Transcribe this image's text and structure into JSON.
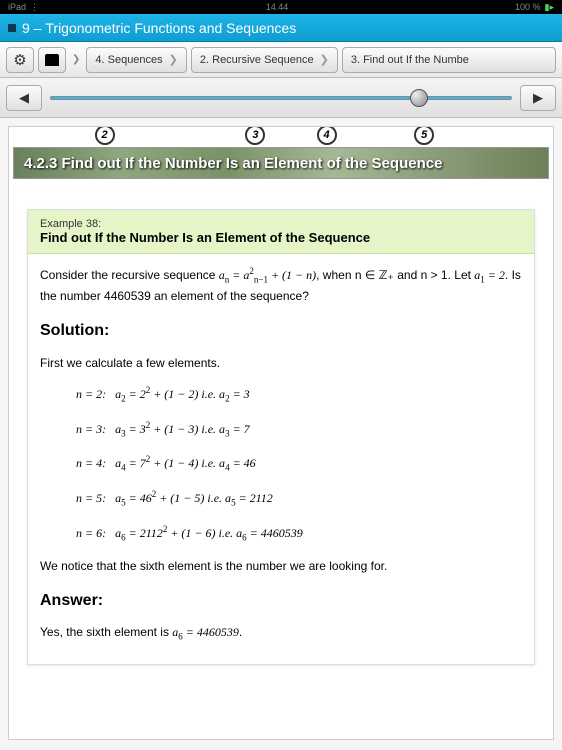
{
  "status": {
    "carrier": "iPad",
    "time": "14.44",
    "battery_pct": "100 %",
    "wifi": true
  },
  "title_bar": {
    "chapter_num": "9",
    "chapter_title": "Trigonometric Functions and Sequences"
  },
  "toolbar": {
    "gear": "gear-icon",
    "eraser": "eraser-icon"
  },
  "breadcrumbs": [
    {
      "label": "4. Sequences"
    },
    {
      "label": "2. Recursive Sequence"
    },
    {
      "label": "3. Find out If the Numbe"
    }
  ],
  "slider": {
    "min": 0,
    "max": 100,
    "value": 78,
    "ticks": [
      {
        "label": "2",
        "pos_pct": 8
      },
      {
        "label": "3",
        "pos_pct": 42
      },
      {
        "label": "4",
        "pos_pct": 58
      },
      {
        "label": "5",
        "pos_pct": 80
      }
    ],
    "track_color": "#3fb6e8"
  },
  "section": {
    "number": "4.2.3",
    "title": "Find out If the Number Is an Element of the Sequence",
    "banner_bg_colors": [
      "#6a7f5c",
      "#8fa67e",
      "#7b9268",
      "#a5b896",
      "#6d8059"
    ],
    "text_color": "#ffffff"
  },
  "example": {
    "label": "Example 38:",
    "title": "Find out If the Number Is an Element of the Sequence",
    "header_bg": "#e6f5c8",
    "intro_prefix": "Consider the recursive sequence ",
    "formula": "a_n = a_{n-1}^2 + (1 - n)",
    "intro_cond": ", when n ∈ ℤ₊ and n > 1. Let ",
    "initial": "a_1 = 2",
    "question": ". Is the number 4460539 an element of the sequence?",
    "target_number": "4460539",
    "solution_heading": "Solution:",
    "solution_intro": "First we calculate a few elements.",
    "calculations": [
      {
        "n": "2",
        "base": "2",
        "offset": "(1 − 2)",
        "result": "3"
      },
      {
        "n": "3",
        "base": "3",
        "offset": "(1 − 3)",
        "result": "7"
      },
      {
        "n": "4",
        "base": "7",
        "offset": "(1 − 4)",
        "result": "46"
      },
      {
        "n": "5",
        "base": "46",
        "offset": "(1 − 5)",
        "result": "2112"
      },
      {
        "n": "6",
        "base": "2112",
        "offset": "(1 − 6)",
        "result": "4460539"
      }
    ],
    "solution_conclusion": "We notice that the sixth element is the number we are looking for.",
    "answer_heading": "Answer:",
    "answer_text_prefix": "Yes, the sixth element is ",
    "answer_formula": "a_6 = 4460539",
    "answer_text_suffix": "."
  },
  "colors": {
    "title_bar_bg": "#1eb4e6",
    "page_bg": "#ffffff",
    "body_text": "#000000",
    "box_border": "#dddddd"
  },
  "typography": {
    "title_fontsize": 14,
    "body_fontsize": 12,
    "heading_fontsize": 16,
    "math_font": "Times New Roman"
  }
}
